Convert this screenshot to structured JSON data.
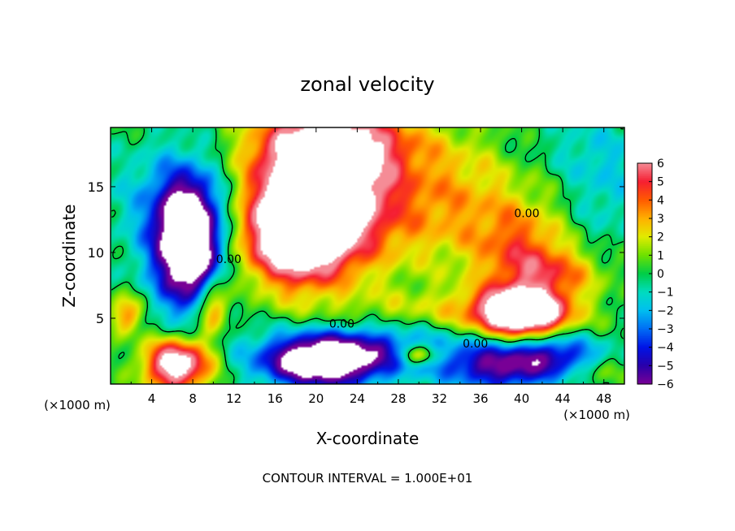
{
  "chart_data": {
    "type": "heatmap",
    "title": "zonal velocity",
    "xlabel": "X-coordinate",
    "ylabel": "Z-coordinate",
    "x_unit": "(×1000 m)",
    "x_unit_right": "(×1000 m)",
    "xlim": [
      0,
      50
    ],
    "ylim": [
      0,
      19.5
    ],
    "x_ticks": [
      4,
      8,
      12,
      16,
      20,
      24,
      28,
      32,
      36,
      40,
      44,
      48
    ],
    "y_ticks": [
      5,
      10,
      15
    ],
    "colorbar": {
      "ticks": [
        6,
        5,
        4,
        3,
        2,
        1,
        0,
        -1,
        -2,
        -3,
        -4,
        -5,
        -6
      ],
      "tick_labels": [
        "6",
        "5",
        "4",
        "3",
        "2",
        "1",
        "0",
        "−1",
        "−2",
        "−3",
        "−4",
        "−5",
        "−6"
      ],
      "range": [
        -6,
        6
      ]
    },
    "contour_labels": [
      {
        "text": "0.00",
        "x": 11.5,
        "y": 9.5
      },
      {
        "text": "0.00",
        "x": 22.5,
        "y": 4.6
      },
      {
        "text": "0.00",
        "x": 35.5,
        "y": 3.1
      },
      {
        "text": "0.00",
        "x": 40.5,
        "y": 13.0
      }
    ],
    "blobs": [
      {
        "x": 20.5,
        "y": 15.8,
        "rx": 5.5,
        "ry": 4.0,
        "v": 7.5
      },
      {
        "x": 18.0,
        "y": 11.0,
        "rx": 5.5,
        "ry": 3.6,
        "v": 7.5
      },
      {
        "x": 21.5,
        "y": 13.5,
        "rx": 9.0,
        "ry": 5.5,
        "v": 3.5
      },
      {
        "x": 22.0,
        "y": 18.5,
        "rx": 8.0,
        "ry": 2.5,
        "v": 4.0
      },
      {
        "x": 34.0,
        "y": 14.0,
        "rx": 8.0,
        "ry": 5.0,
        "v": 2.5
      },
      {
        "x": 40.0,
        "y": 10.5,
        "rx": 4.5,
        "ry": 3.0,
        "v": 3.0
      },
      {
        "x": 43.0,
        "y": 8.5,
        "rx": 5.0,
        "ry": 1.8,
        "v": 3.0
      },
      {
        "x": 40.0,
        "y": 5.5,
        "rx": 3.8,
        "ry": 1.6,
        "v": 9.0
      },
      {
        "x": 40.0,
        "y": 5.5,
        "rx": 6.0,
        "ry": 2.4,
        "v": 3.0
      },
      {
        "x": 7.5,
        "y": 11.0,
        "rx": 2.6,
        "ry": 3.8,
        "v": -9.0
      },
      {
        "x": 8.0,
        "y": 10.5,
        "rx": 4.5,
        "ry": 6.0,
        "v": -4.0
      },
      {
        "x": 5.0,
        "y": 14.0,
        "rx": 5.0,
        "ry": 4.0,
        "v": -1.5
      },
      {
        "x": 20.5,
        "y": 1.6,
        "rx": 5.5,
        "ry": 1.8,
        "v": -8.5
      },
      {
        "x": 25.0,
        "y": 2.8,
        "rx": 9.0,
        "ry": 2.0,
        "v": -3.5
      },
      {
        "x": 38.5,
        "y": 1.4,
        "rx": 6.0,
        "ry": 1.8,
        "v": -6.0
      },
      {
        "x": 44.0,
        "y": 2.5,
        "rx": 4.0,
        "ry": 1.5,
        "v": -3.0
      },
      {
        "x": 6.5,
        "y": 1.5,
        "rx": 3.2,
        "ry": 2.0,
        "v": 8.5
      },
      {
        "x": 10.0,
        "y": 6.0,
        "rx": 1.5,
        "ry": 2.2,
        "v": 5.0
      },
      {
        "x": 30.0,
        "y": 2.2,
        "rx": 2.0,
        "ry": 0.8,
        "v": 4.5
      },
      {
        "x": 1.5,
        "y": 5.3,
        "rx": 1.5,
        "ry": 1.5,
        "v": 4.0
      },
      {
        "x": 47.0,
        "y": 0.8,
        "rx": 3.0,
        "ry": 1.0,
        "v": 1.5
      },
      {
        "x": 30.0,
        "y": 5.5,
        "rx": 10.0,
        "ry": 1.6,
        "v": 1.5
      },
      {
        "x": 48.0,
        "y": 15.0,
        "rx": 4.0,
        "ry": 4.5,
        "v": -1.5
      },
      {
        "x": 44.0,
        "y": 18.0,
        "rx": 6.0,
        "ry": 2.5,
        "v": -0.8
      }
    ],
    "footer": "CONTOUR INTERVAL = 1.000E+01"
  }
}
